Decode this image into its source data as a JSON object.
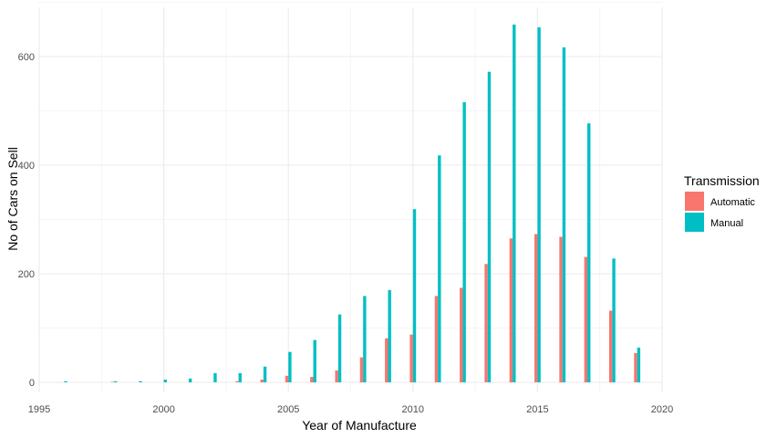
{
  "chart_data": {
    "type": "bar",
    "xlabel": "Year of Manufacture",
    "ylabel": "No of Cars on Sell",
    "xlim": [
      1995,
      2020
    ],
    "ylim": [
      0,
      660
    ],
    "x_ticks": [
      1995,
      2000,
      2005,
      2010,
      2015,
      2020
    ],
    "y_ticks": [
      0,
      200,
      400,
      600
    ],
    "grid": true,
    "legend": {
      "title": "Transmission",
      "placement": "right",
      "entries": [
        {
          "label": "Automatic",
          "color": "#F8766D"
        },
        {
          "label": "Manual",
          "color": "#00BFC4"
        }
      ]
    },
    "x": [
      1996,
      1998,
      1999,
      2000,
      2001,
      2002,
      2003,
      2004,
      2005,
      2006,
      2007,
      2008,
      2009,
      2010,
      2011,
      2012,
      2013,
      2014,
      2015,
      2016,
      2017,
      2018,
      2019
    ],
    "series": [
      {
        "name": "Automatic",
        "color": "#F8766D",
        "values": [
          0,
          1,
          0,
          0,
          0,
          0,
          2,
          5,
          12,
          10,
          22,
          46,
          81,
          88,
          159,
          174,
          218,
          265,
          273,
          268,
          231,
          132,
          54
        ]
      },
      {
        "name": "Manual",
        "color": "#00BFC4",
        "values": [
          2,
          2,
          2,
          5,
          7,
          17,
          17,
          29,
          56,
          78,
          125,
          159,
          170,
          319,
          418,
          516,
          572,
          659,
          654,
          617,
          477,
          228,
          64
        ]
      }
    ]
  }
}
